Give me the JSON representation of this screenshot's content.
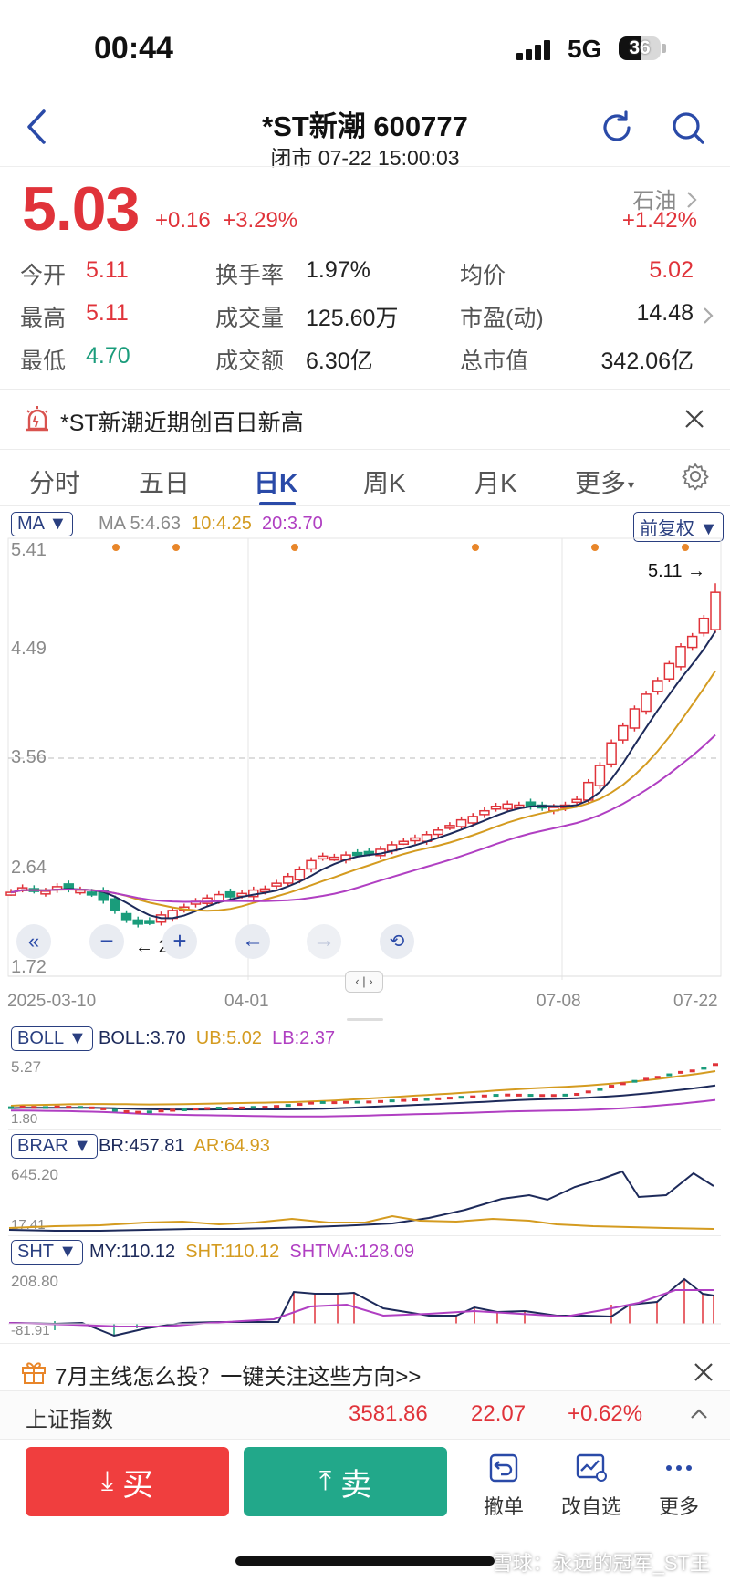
{
  "status": {
    "time": "00:44",
    "network": "5G",
    "battery": "36"
  },
  "header": {
    "title": "*ST新潮 600777",
    "subtitle": "闭市 07-22 15:00:03"
  },
  "quote": {
    "price": "5.03",
    "change": "+0.16",
    "change_pct": "+3.29%",
    "sector": "石油",
    "sector_change": "+1.42%"
  },
  "stats": [
    {
      "label": "今开",
      "value": "5.11",
      "color": "#e0333a"
    },
    {
      "label": "换手率",
      "value": "1.97%",
      "color": "#222222"
    },
    {
      "label": "均价",
      "value": "5.02",
      "color": "#e0333a"
    },
    {
      "label": "最高",
      "value": "5.11",
      "color": "#e0333a"
    },
    {
      "label": "成交量",
      "value": "125.60万",
      "color": "#222222"
    },
    {
      "label": "市盈(动)",
      "value": "14.48",
      "color": "#222222"
    },
    {
      "label": "最低",
      "value": "4.70",
      "color": "#1a9c7b"
    },
    {
      "label": "成交额",
      "value": "6.30亿",
      "color": "#222222"
    },
    {
      "label": "总市值",
      "value": "342.06亿",
      "color": "#222222"
    }
  ],
  "notice": {
    "text": "*ST新潮近期创百日新高"
  },
  "tabs": [
    "分时",
    "五日",
    "日K",
    "周K",
    "月K",
    "更多"
  ],
  "active_tab": "日K",
  "ma_panel": {
    "selector": "MA",
    "ma5": "MA 5:4.63",
    "ma10": "10:4.25",
    "ma20": "20:3.70",
    "adjust": "前复权",
    "y_labels": [
      "5.41",
      "4.49",
      "3.56",
      "2.64",
      "1.72"
    ],
    "x_labels": [
      "2025-03-10",
      "04-01",
      "07-08",
      "07-22"
    ],
    "high_label": "5.11",
    "low_label": "2.02"
  },
  "boll_panel": {
    "selector": "BOLL",
    "boll": "BOLL:3.70",
    "ub": "UB:5.02",
    "lb": "LB:2.37",
    "y_top": "5.27",
    "y_bottom": "1.80"
  },
  "brar_panel": {
    "selector": "BRAR",
    "br": "BR:457.81",
    "ar": "AR:64.93",
    "y_top": "645.20",
    "y_bottom": "17.41"
  },
  "sht_panel": {
    "selector": "SHT",
    "my": "MY:110.12",
    "sht": "SHT:110.12",
    "shtma": "SHTMA:128.09",
    "y_top": "208.80",
    "y_bottom": "-81.91"
  },
  "promo": {
    "text": "7月主线怎么投？一键关注这些方向>>"
  },
  "index": {
    "name": "上证指数",
    "value": "3581.86",
    "change": "22.07",
    "change_pct": "+0.62%"
  },
  "actions": {
    "buy": "买",
    "sell": "卖",
    "cancel": "撤单",
    "edit": "改自选",
    "more": "更多"
  },
  "watermark": "雪球：永远的冠军_ST王",
  "chart_data": {
    "type": "candlestick",
    "x": [
      "2025-03-10",
      "04-01",
      "07-08",
      "07-22"
    ],
    "ylim": [
      1.72,
      5.41
    ],
    "close_last": 5.03,
    "high": 5.11,
    "low": 2.02,
    "series": [
      {
        "name": "MA5",
        "last": 4.63,
        "color": "#1d2a5a"
      },
      {
        "name": "MA10",
        "last": 4.25,
        "color": "#d49b20"
      },
      {
        "name": "MA20",
        "last": 3.7,
        "color": "#b03fc2"
      }
    ]
  }
}
